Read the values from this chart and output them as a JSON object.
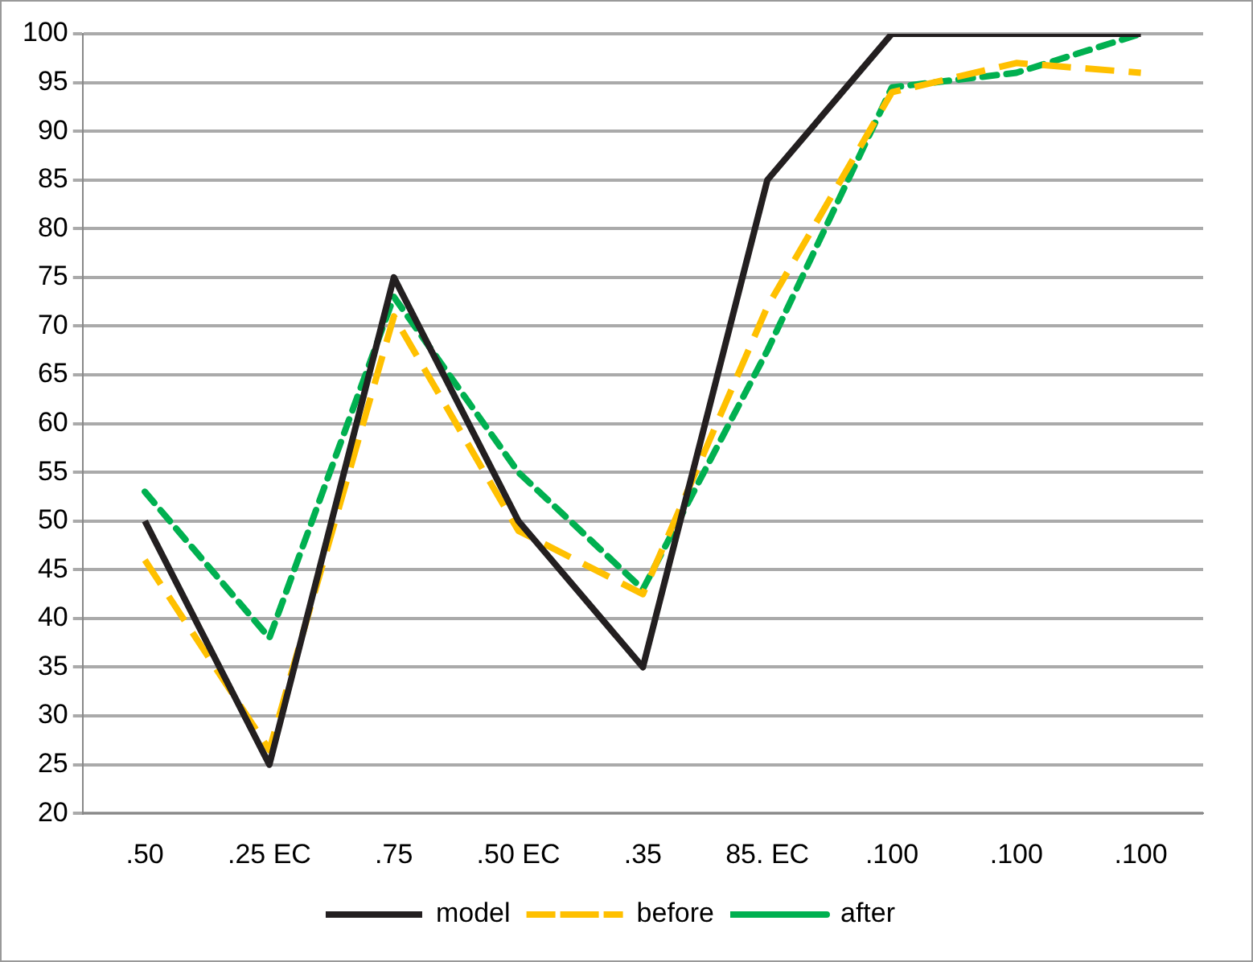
{
  "chart_data": {
    "type": "line",
    "categories": [
      ".50",
      ".25 EC",
      ".75",
      ".50 EC",
      ".35",
      "85. EC",
      ".100",
      ".100",
      ".100"
    ],
    "series": [
      {
        "name": "model",
        "color": "#231f20",
        "line_style": "solid",
        "values": [
          50,
          25,
          75,
          50,
          35,
          85,
          100,
          100,
          100
        ]
      },
      {
        "name": "before",
        "color": "#ffc000",
        "line_style": "dashed",
        "values": [
          46,
          26.5,
          71,
          49,
          42.5,
          72,
          94,
          97,
          96
        ]
      },
      {
        "name": "after",
        "color": "#00b050",
        "line_style": "dotted",
        "values": [
          53,
          38,
          73,
          55,
          43,
          67.5,
          94.5,
          96,
          100
        ]
      }
    ],
    "ylim": [
      20,
      100
    ],
    "yticks": [
      20,
      25,
      30,
      35,
      40,
      45,
      50,
      55,
      60,
      65,
      70,
      75,
      80,
      85,
      90,
      95,
      100
    ],
    "grid": "y",
    "legend": "bottom",
    "marker": "none"
  }
}
